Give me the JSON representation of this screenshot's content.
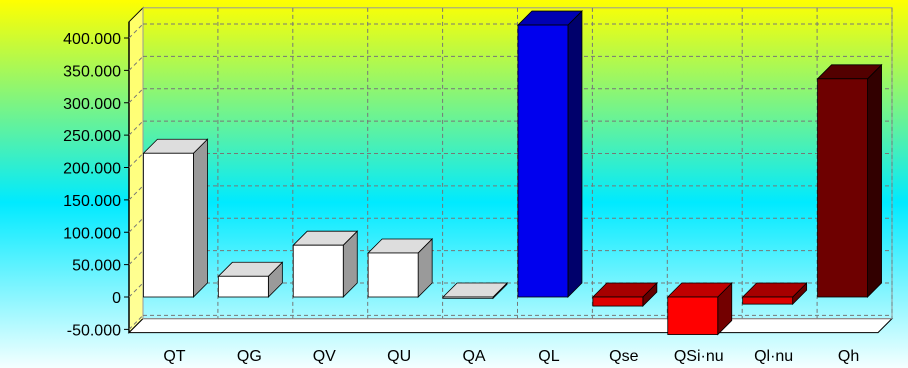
{
  "chart_data": {
    "type": "bar",
    "categories": [
      "QT",
      "QG",
      "QV",
      "QU",
      "QA",
      "QL",
      "Qse",
      "QSi·nu",
      "Ql·nu",
      "Qh"
    ],
    "values": [
      222000,
      32000,
      80000,
      68000,
      -2000,
      420000,
      -14000,
      -58000,
      -11000,
      337000
    ],
    "colors": [
      "#ffffff",
      "#ffffff",
      "#ffffff",
      "#ffffff",
      "#ffffff",
      "#0000ee",
      "#dd0000",
      "#ff0000",
      "#dd0000",
      "#6e0000"
    ],
    "yticks": [
      "400.000",
      "350.000",
      "300.000",
      "250.000",
      "200.000",
      "150.000",
      "100.000",
      "50.000",
      "0",
      "-50.000"
    ],
    "ytick_values": [
      400000,
      350000,
      300000,
      250000,
      200000,
      150000,
      100000,
      50000,
      0,
      -50000
    ],
    "ylim": [
      -55000,
      425000
    ],
    "grid": true,
    "background_gradient": [
      "#ffff00",
      "#00eeff",
      "#ffffff"
    ]
  }
}
